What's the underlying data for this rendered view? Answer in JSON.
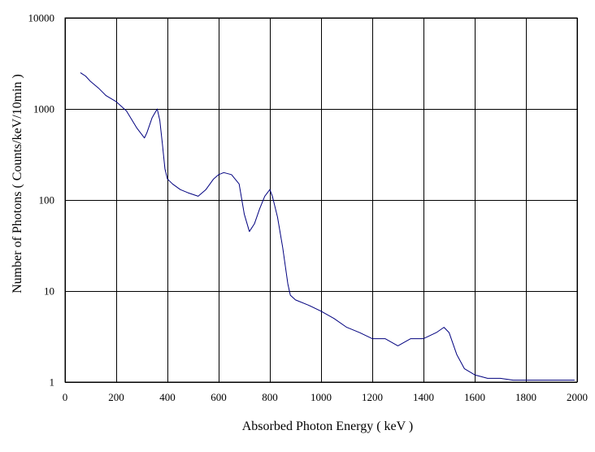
{
  "chart_data": {
    "type": "line",
    "title": "",
    "xlabel": "Absorbed Photon Energy ( keV )",
    "ylabel": "Number of Photons ( Counts/keV/10min )",
    "xlim": [
      0,
      2000
    ],
    "ylim": [
      1,
      10000
    ],
    "yscale": "log",
    "grid": true,
    "legend": "none",
    "x_ticks": [
      "0",
      "200",
      "400",
      "600",
      "800",
      "1000",
      "1200",
      "1400",
      "1600",
      "1800",
      "2000"
    ],
    "y_ticks": [
      "1",
      "10",
      "100",
      "1000",
      "10000"
    ],
    "series": [
      {
        "color": "#00007f",
        "x": [
          60,
          70,
          80,
          100,
          130,
          160,
          200,
          240,
          280,
          310,
          320,
          340,
          360,
          370,
          380,
          390,
          400,
          420,
          450,
          480,
          520,
          550,
          580,
          600,
          620,
          650,
          680,
          700,
          720,
          740,
          760,
          780,
          800,
          810,
          830,
          850,
          870,
          880,
          900,
          950,
          1000,
          1050,
          1100,
          1150,
          1200,
          1250,
          1300,
          1350,
          1400,
          1450,
          1480,
          1500,
          1530,
          1560,
          1600,
          1650,
          1700,
          1750,
          1800,
          1850,
          1900,
          1950,
          1990
        ],
        "y": [
          2500,
          2400,
          2300,
          2000,
          1700,
          1400,
          1200,
          950,
          620,
          480,
          550,
          800,
          1000,
          750,
          420,
          220,
          170,
          150,
          130,
          120,
          110,
          130,
          170,
          190,
          200,
          190,
          150,
          70,
          45,
          55,
          80,
          110,
          130,
          110,
          65,
          30,
          12,
          9,
          8,
          7,
          6,
          5,
          4,
          3.5,
          3,
          3,
          2.5,
          3,
          3,
          3.5,
          4,
          3.5,
          2,
          1.4,
          1.2,
          1.1,
          1.1,
          1.05,
          1.05,
          1.05,
          1.05,
          1.05,
          1.05
        ]
      }
    ]
  }
}
